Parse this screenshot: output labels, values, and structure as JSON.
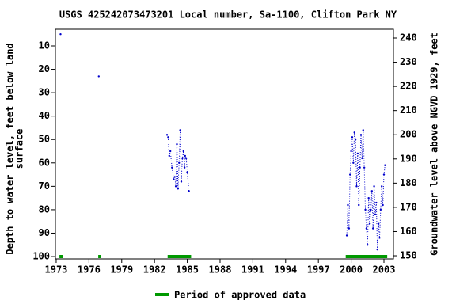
{
  "chart_data": {
    "type": "scatter",
    "title": "USGS 425242073473201 Local number, Sa-1100, Clifton Park NY",
    "ylabel": [
      "Depth to water level, feet below land",
      "surface"
    ],
    "y2label": "Groundwater level above NGVD 1929, feet",
    "xlim": [
      1972.93,
      2003.87
    ],
    "ylim": [
      101,
      2.9
    ],
    "y2lim": [
      148.7,
      243.6
    ],
    "xticks": [
      1973,
      1976,
      1979,
      1982,
      1985,
      1988,
      1991,
      1994,
      1997,
      2000,
      2003
    ],
    "yticks": [
      10,
      20,
      30,
      40,
      50,
      60,
      70,
      80,
      90,
      100
    ],
    "y2ticks": [
      150,
      160,
      170,
      180,
      190,
      200,
      210,
      220,
      230,
      240
    ],
    "series": [
      {
        "color": "#0000cc",
        "x": [
          1973.4,
          null,
          1976.9,
          null,
          1983.15,
          1983.25,
          1983.35,
          1983.45,
          1983.6,
          1983.75,
          1983.85,
          1983.95,
          1984.05,
          1984.15,
          1984.25,
          1984.35,
          1984.45,
          1984.55,
          1984.65,
          1984.75,
          1984.8,
          1984.9,
          1985.0,
          1985.15,
          null,
          1999.6,
          1999.7,
          1999.8,
          1999.9,
          2000.0,
          2000.1,
          2000.2,
          2000.3,
          2000.4,
          2000.5,
          2000.6,
          2000.7,
          2000.8,
          2000.9,
          2001.0,
          2001.1,
          2001.2,
          2001.3,
          2001.4,
          2001.5,
          2001.6,
          2001.7,
          2001.8,
          2001.9,
          2002.0,
          2002.1,
          2002.2,
          2002.3,
          2002.4,
          2002.5,
          2002.6,
          2002.7,
          2002.8,
          2002.9,
          2003.0,
          2003.1
        ],
        "values": [
          5,
          null,
          23,
          null,
          48,
          49,
          57,
          55,
          62,
          67,
          66,
          70,
          52,
          71,
          60,
          46,
          68,
          58,
          55,
          62,
          57,
          58,
          64,
          72,
          null,
          91,
          78,
          88,
          65,
          55,
          49,
          60,
          47,
          50,
          70,
          56,
          78,
          62,
          48,
          58,
          46,
          62,
          80,
          88,
          95,
          75,
          86,
          80,
          72,
          88,
          70,
          82,
          77,
          97,
          86,
          92,
          80,
          70,
          78,
          65,
          61
        ]
      }
    ],
    "approved_periods": {
      "name": "Period of approved data",
      "color": "#009900",
      "ranges": [
        [
          1973.3,
          1973.6
        ],
        [
          1976.85,
          1977.1
        ],
        [
          1983.2,
          1985.35
        ],
        [
          1999.5,
          2003.3
        ]
      ]
    }
  }
}
